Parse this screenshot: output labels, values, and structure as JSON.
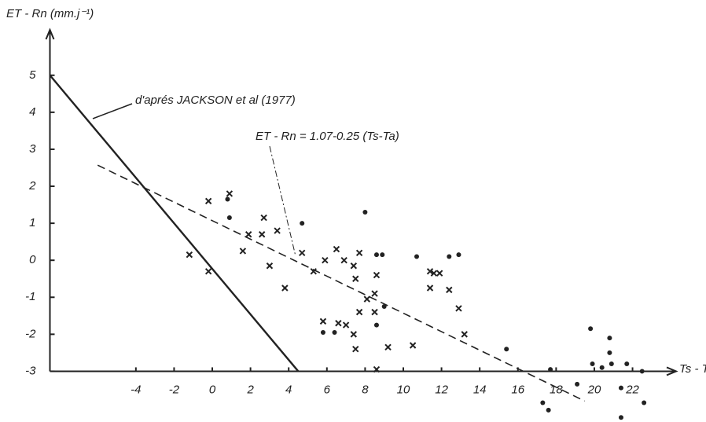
{
  "chart_data": {
    "type": "scatter",
    "y_label": "ET - Rn  (mm.j⁻¹)",
    "x_label": "Ts - Ta",
    "xlim": [
      -8.5,
      24.2
    ],
    "ylim": [
      -4.35,
      6.1
    ],
    "xticks": [
      -4,
      -2,
      0,
      2,
      4,
      6,
      8,
      10,
      12,
      14,
      16,
      18,
      20,
      22
    ],
    "yticks": [
      -3,
      -2,
      -1,
      0,
      1,
      2,
      3,
      4,
      5
    ],
    "x_axis_at": -3,
    "color": "#222",
    "series": [
      {
        "marker": "x",
        "x": [
          -1.2,
          -0.2,
          -0.2,
          0.9,
          1.9,
          1.6,
          2.6,
          2.7,
          3.0,
          3.4,
          3.8,
          4.7,
          5.3,
          5.9,
          6.5,
          6.9,
          7.4,
          7.7,
          7.5,
          5.8,
          6.6,
          7.0,
          7.4,
          7.7,
          8.1,
          8.5,
          8.6,
          8.5,
          7.5,
          9.2,
          10.5,
          8.6,
          11.4,
          11.6,
          11.9,
          11.4,
          12.4,
          12.9,
          13.2
        ],
        "values": [
          0.15,
          -0.3,
          1.6,
          1.8,
          0.7,
          0.25,
          0.7,
          1.15,
          -0.15,
          0.8,
          -0.75,
          0.2,
          -0.3,
          0.0,
          0.3,
          0.0,
          -0.15,
          0.2,
          -0.5,
          -1.65,
          -1.7,
          -1.75,
          -2.0,
          -1.4,
          -1.05,
          -0.9,
          -0.4,
          -1.4,
          -2.4,
          -2.35,
          -2.3,
          -2.95,
          -0.3,
          -0.35,
          -0.35,
          -0.75,
          -0.8,
          -1.3,
          -2.0
        ]
      },
      {
        "marker": "dot",
        "x": [
          0.9,
          0.8,
          4.7,
          8.0,
          5.8,
          6.4,
          8.6,
          8.9,
          9.0,
          8.6,
          10.7,
          12.4,
          12.9,
          15.4,
          17.7,
          17.3,
          17.6,
          19.1,
          19.8,
          19.9,
          20.4,
          20.8,
          20.8,
          20.9,
          21.7,
          21.4,
          22.6,
          22.5,
          21.4
        ],
        "values": [
          1.15,
          1.65,
          1.0,
          1.3,
          -1.95,
          -1.95,
          0.15,
          0.15,
          -1.25,
          -1.75,
          0.1,
          0.1,
          0.15,
          -2.4,
          -2.95,
          -3.85,
          -4.05,
          -3.35,
          -1.85,
          -2.8,
          -2.9,
          -2.1,
          -2.5,
          -2.8,
          -2.8,
          -4.25,
          -3.85,
          -3.0,
          -3.45
        ]
      }
    ],
    "lines": [
      {
        "label": "d'aprés  JACKSON  et  al   (1977)",
        "style": "solid",
        "x": [
          -8.5,
          4.5
        ],
        "values": [
          5,
          -3
        ]
      },
      {
        "label": "ET -  Rn    = 1.07-0.25 (Ts-Ta)",
        "style": "dashed",
        "x": [
          -6,
          19.5
        ],
        "values": [
          2.57,
          -3.805
        ]
      }
    ]
  }
}
